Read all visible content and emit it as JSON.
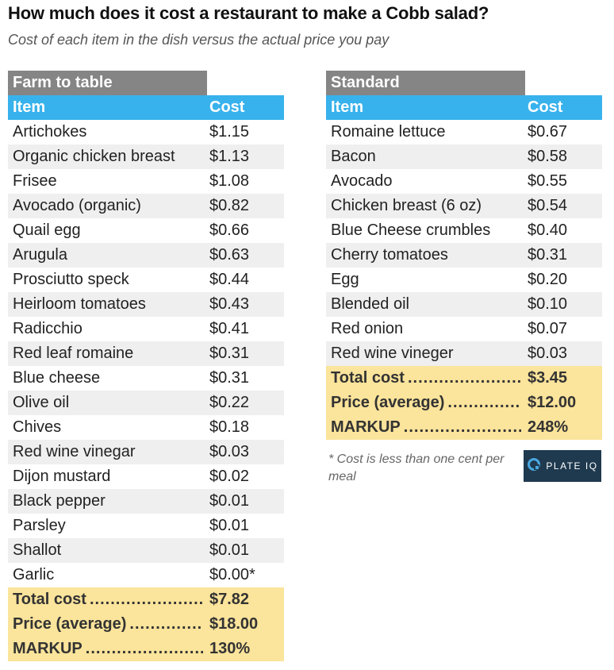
{
  "title": "How much does it cost a restaurant to make a Cobb salad?",
  "subtitle": "Cost of each item in the dish versus the actual price you pay",
  "footnote": "* Cost is less than one cent per meal",
  "logo": {
    "text": "PLATE IQ"
  },
  "colors": {
    "header_blue": "#38b2ec",
    "section_gray": "#858585",
    "total_yellow": "#fbe49b",
    "alt_row": "#efefef",
    "logo_bg": "#1f3a4f",
    "logo_mark": "#4aa8e0"
  },
  "chart_data": [
    {
      "type": "table",
      "title": "Farm to table",
      "columns": [
        "Item",
        "Cost"
      ],
      "rows": [
        [
          "Artichokes",
          "$1.15"
        ],
        [
          "Organic chicken breast",
          "$1.13"
        ],
        [
          "Frisee",
          "$1.08"
        ],
        [
          "Avocado (organic)",
          "$0.82"
        ],
        [
          "Quail egg",
          "$0.66"
        ],
        [
          "Arugula",
          "$0.63"
        ],
        [
          "Prosciutto speck",
          "$0.44"
        ],
        [
          "Heirloom tomatoes",
          "$0.43"
        ],
        [
          "Radicchio",
          "$0.41"
        ],
        [
          "Red leaf romaine",
          "$0.31"
        ],
        [
          "Blue cheese",
          "$0.31"
        ],
        [
          "Olive oil",
          "$0.22"
        ],
        [
          "Chives",
          "$0.18"
        ],
        [
          "Red wine vinegar",
          "$0.03"
        ],
        [
          "Dijon mustard",
          "$0.02"
        ],
        [
          "Black pepper",
          "$0.01"
        ],
        [
          "Parsley",
          "$0.01"
        ],
        [
          "Shallot",
          "$0.01"
        ],
        [
          "Garlic",
          "$0.00*"
        ]
      ],
      "totals": [
        [
          "Total cost",
          "$7.82"
        ],
        [
          "Price (average)",
          "$18.00"
        ],
        [
          "MARKUP",
          "130%"
        ]
      ]
    },
    {
      "type": "table",
      "title": "Standard",
      "columns": [
        "Item",
        "Cost"
      ],
      "rows": [
        [
          "Romaine lettuce",
          "$0.67"
        ],
        [
          "Bacon",
          "$0.58"
        ],
        [
          "Avocado",
          "$0.55"
        ],
        [
          "Chicken breast (6 oz)",
          "$0.54"
        ],
        [
          "Blue Cheese crumbles",
          "$0.40"
        ],
        [
          "Cherry tomatoes",
          "$0.31"
        ],
        [
          "Egg",
          "$0.20"
        ],
        [
          "Blended oil",
          "$0.10"
        ],
        [
          "Red onion",
          "$0.07"
        ],
        [
          "Red wine vineger",
          "$0.03"
        ]
      ],
      "totals": [
        [
          "Total cost",
          "$3.45"
        ],
        [
          "Price (average)",
          "$12.00"
        ],
        [
          "MARKUP",
          "248%"
        ]
      ]
    }
  ]
}
